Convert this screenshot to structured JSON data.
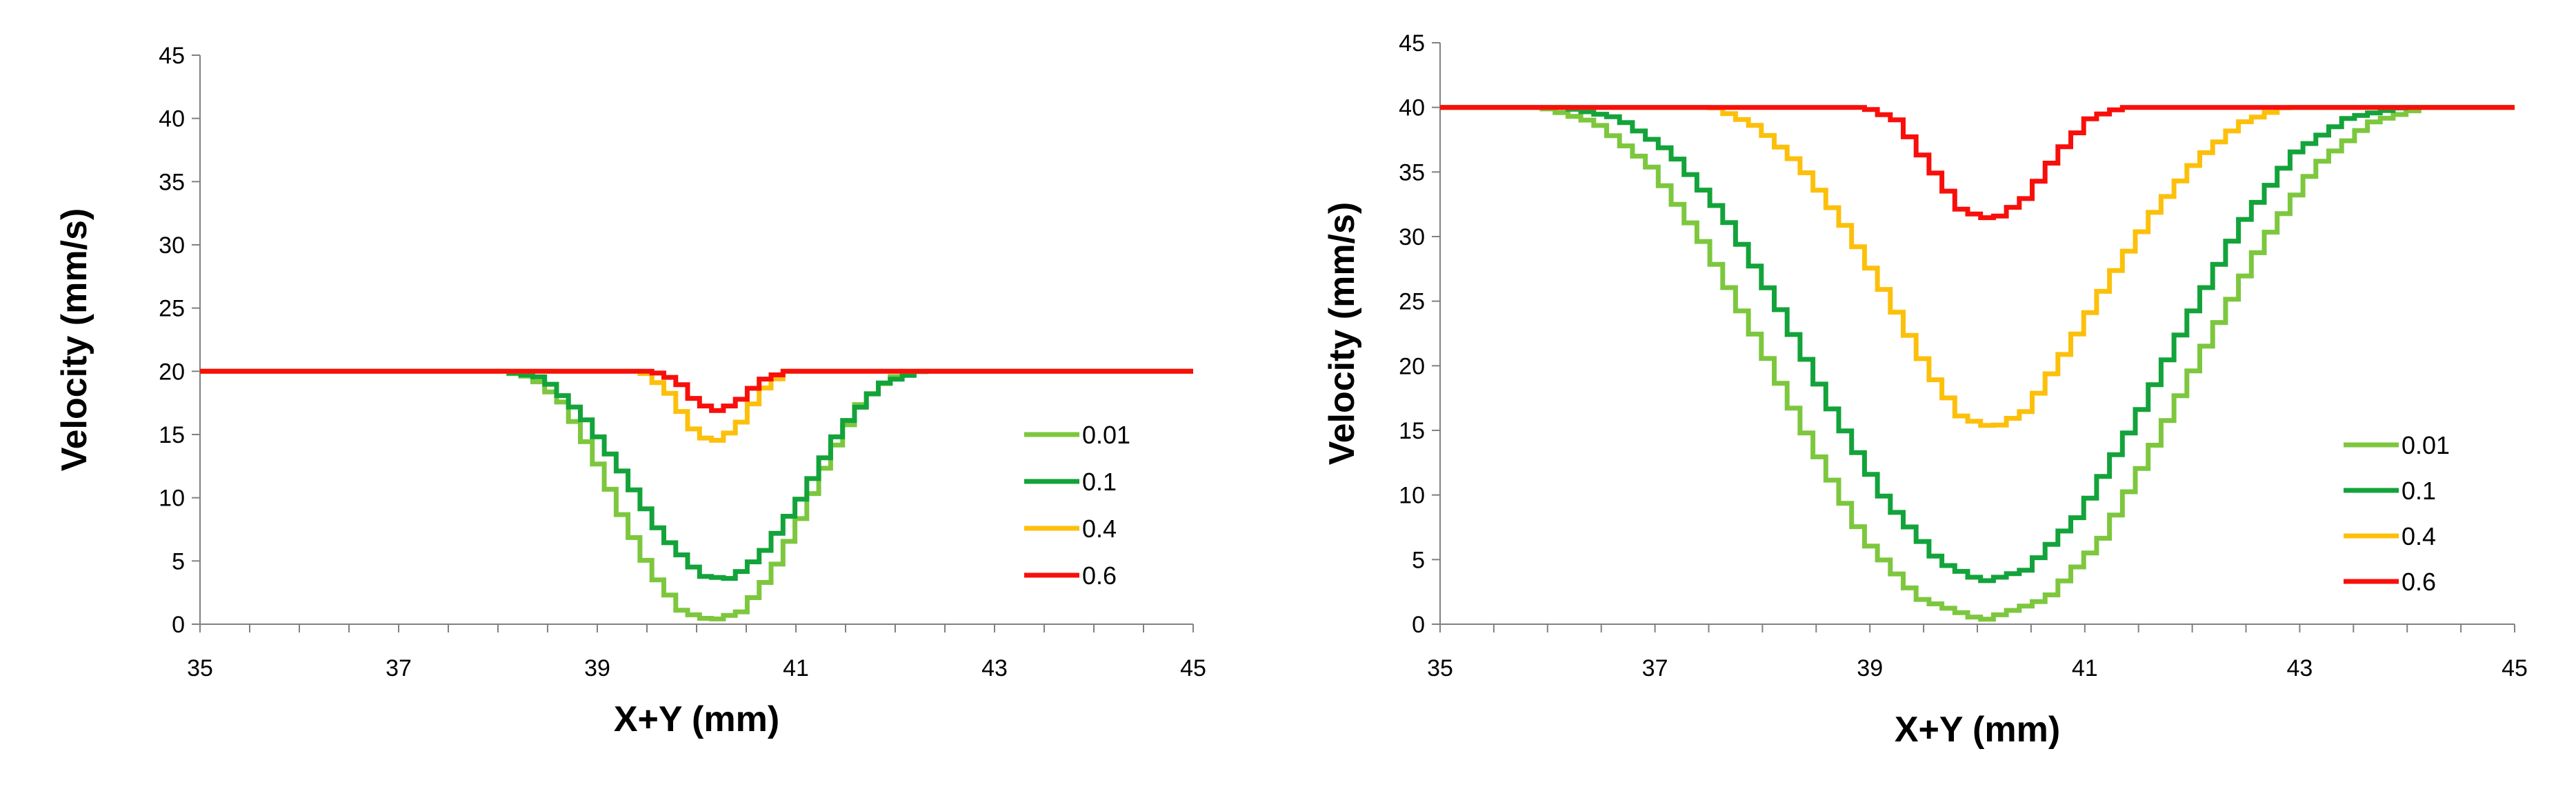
{
  "chart_data": [
    {
      "type": "line",
      "title": "",
      "xlabel": "X+Y (mm)",
      "ylabel": "Velocity (mm/s)",
      "xlim": [
        35,
        45
      ],
      "ylim": [
        0,
        45
      ],
      "xticks": [
        35,
        37,
        39,
        41,
        43,
        45
      ],
      "yticks": [
        0,
        5,
        10,
        15,
        20,
        25,
        30,
        35,
        40,
        45
      ],
      "grid": false,
      "legend_position": "right",
      "base_velocity": 20,
      "series": [
        {
          "name": "0.01",
          "color": "#7dc73e",
          "x": [
            35,
            38.0,
            38.3,
            38.6,
            38.9,
            39.2,
            39.5,
            39.8,
            40.1,
            40.4,
            40.7,
            41.0,
            41.3,
            41.6,
            41.9,
            42.2,
            45
          ],
          "y": [
            20,
            20,
            19.5,
            17.5,
            13.5,
            8.5,
            4.0,
            1.0,
            0.3,
            1.0,
            4.0,
            8.5,
            13.5,
            17.5,
            19.5,
            20,
            20
          ]
        },
        {
          "name": "0.1",
          "color": "#13a33a",
          "x": [
            35,
            38.0,
            38.4,
            38.8,
            39.2,
            39.6,
            40.0,
            40.3,
            40.6,
            41.0,
            41.4,
            41.8,
            42.2,
            45
          ],
          "y": [
            20,
            20,
            19.5,
            16.5,
            12.0,
            7.0,
            3.8,
            3.6,
            5.5,
            10.0,
            15.5,
            19.0,
            20,
            20
          ]
        },
        {
          "name": "0.4",
          "color": "#fcc00c",
          "x": [
            35,
            39.4,
            39.65,
            39.9,
            40.1,
            40.35,
            40.6,
            40.85,
            45
          ],
          "y": [
            20,
            20,
            18.5,
            15.5,
            14.3,
            15.5,
            18.5,
            20,
            20
          ]
        },
        {
          "name": "0.6",
          "color": "#f80f0b",
          "x": [
            35,
            39.5,
            39.75,
            39.95,
            40.15,
            40.35,
            40.6,
            40.85,
            45
          ],
          "y": [
            20,
            20,
            19.3,
            17.5,
            16.9,
            17.5,
            19.3,
            20,
            20
          ]
        }
      ]
    },
    {
      "type": "line",
      "title": "",
      "xlabel": "X+Y (mm)",
      "ylabel": "Velocity (mm/s)",
      "xlim": [
        35,
        45
      ],
      "ylim": [
        0,
        45
      ],
      "xticks": [
        35,
        37,
        39,
        41,
        43,
        45
      ],
      "yticks": [
        0,
        5,
        10,
        15,
        20,
        25,
        30,
        35,
        40,
        45
      ],
      "grid": false,
      "legend_position": "right",
      "base_velocity": 40,
      "series": [
        {
          "name": "0.01",
          "color": "#7dc73e",
          "x": [
            35,
            35.9,
            36.4,
            36.9,
            37.4,
            37.9,
            38.4,
            38.9,
            39.4,
            40.0,
            40.6,
            41.1,
            41.6,
            42.1,
            42.6,
            43.1,
            43.6,
            44.1,
            45
          ],
          "y": [
            40,
            40,
            38.8,
            35.5,
            29.5,
            22.0,
            14.0,
            6.5,
            2.0,
            0.3,
            2.0,
            6.5,
            14.0,
            22.0,
            29.5,
            35.5,
            38.8,
            40,
            40
          ]
        },
        {
          "name": "0.1",
          "color": "#13a33a",
          "x": [
            35,
            36.1,
            36.6,
            37.1,
            37.6,
            38.1,
            38.6,
            39.1,
            39.6,
            40.0,
            40.4,
            40.9,
            41.4,
            41.9,
            42.4,
            42.9,
            43.4,
            43.9,
            45
          ],
          "y": [
            40,
            40,
            39.2,
            36.5,
            31.5,
            24.5,
            16.5,
            9.5,
            4.8,
            3.3,
            4.2,
            8.5,
            15.5,
            23.5,
            31.0,
            36.5,
            39.2,
            40,
            40
          ]
        },
        {
          "name": "0.4",
          "color": "#fcc00c",
          "x": [
            35,
            37.5,
            37.9,
            38.3,
            38.7,
            39.1,
            39.5,
            39.8,
            40.1,
            40.4,
            40.8,
            41.2,
            41.6,
            42.0,
            42.4,
            42.8,
            45
          ],
          "y": [
            40,
            40,
            38.5,
            35.5,
            31.0,
            25.5,
            19.5,
            16.0,
            15.2,
            16.5,
            21.5,
            27.0,
            32.0,
            36.0,
            38.8,
            40,
            40
          ]
        },
        {
          "name": "0.6",
          "color": "#f80f0b",
          "x": [
            35,
            38.9,
            39.2,
            39.5,
            39.8,
            40.1,
            40.4,
            40.7,
            41.0,
            41.3,
            45
          ],
          "y": [
            40,
            40,
            39.0,
            35.5,
            32.0,
            31.3,
            33.0,
            36.5,
            39.2,
            40,
            40
          ]
        }
      ]
    }
  ]
}
